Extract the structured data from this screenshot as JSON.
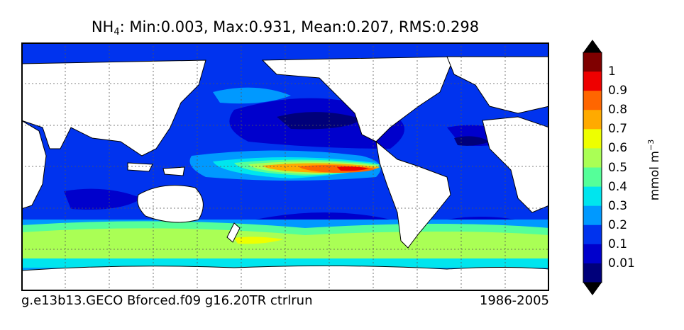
{
  "title": {
    "species": "NH",
    "subscript": "4",
    "stats": ": Min:0.003, Max:0.931, Mean:0.207, RMS:0.298"
  },
  "footer": {
    "case_name": "g.e13b13.GECO Bforced.f09 g16.20TR ctrlrun",
    "years": "1986-2005"
  },
  "colorbar": {
    "label_text": "mmol m",
    "label_exp": "−3",
    "ticks": [
      "1",
      "0.9",
      "0.8",
      "0.7",
      "0.6",
      "0.5",
      "0.4",
      "0.3",
      "0.2",
      "0.1",
      "0.01"
    ],
    "colors": [
      "#7f0000",
      "#ee0000",
      "#ff6600",
      "#ffaa00",
      "#eeff00",
      "#aaff55",
      "#55ff99",
      "#00e5ee",
      "#0099ff",
      "#0033ee",
      "#0000cc",
      "#00007a"
    ],
    "extend_max_color": "#000000",
    "extend_min_color": "#000000"
  },
  "map": {
    "projection": "cylindrical",
    "central_longitude": "Pacific-centered",
    "gridlines": true,
    "land_color": "#ffffff",
    "coast_color": "#000000"
  }
}
